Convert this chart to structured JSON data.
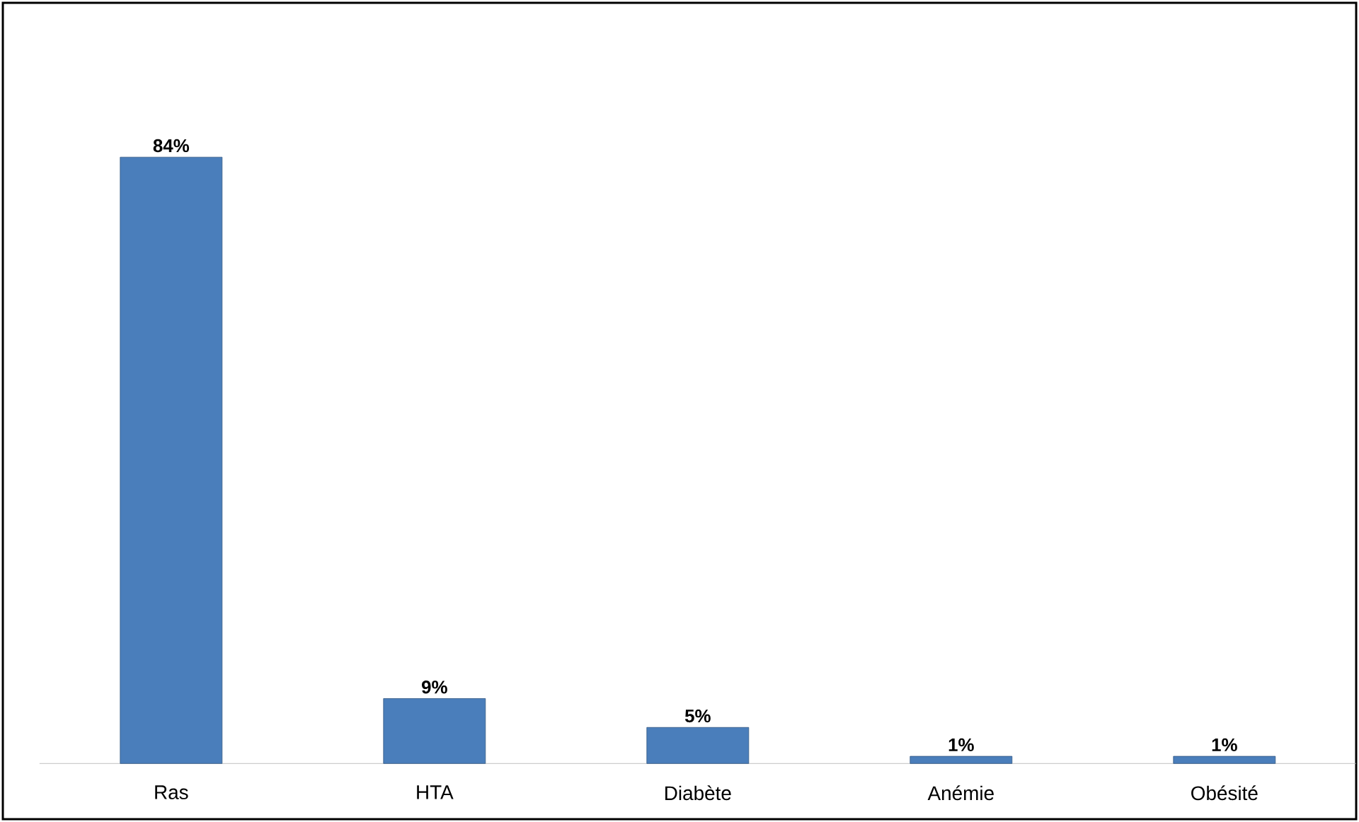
{
  "chart_data": {
    "type": "bar",
    "categories": [
      "Ras",
      "HTA",
      "Diabète",
      "Anémie",
      "Obésité"
    ],
    "values": [
      84,
      9,
      5,
      1,
      1
    ],
    "value_labels": [
      "84%",
      "9%",
      "5%",
      "1%",
      "1%"
    ],
    "color": "#4a7ebb"
  }
}
